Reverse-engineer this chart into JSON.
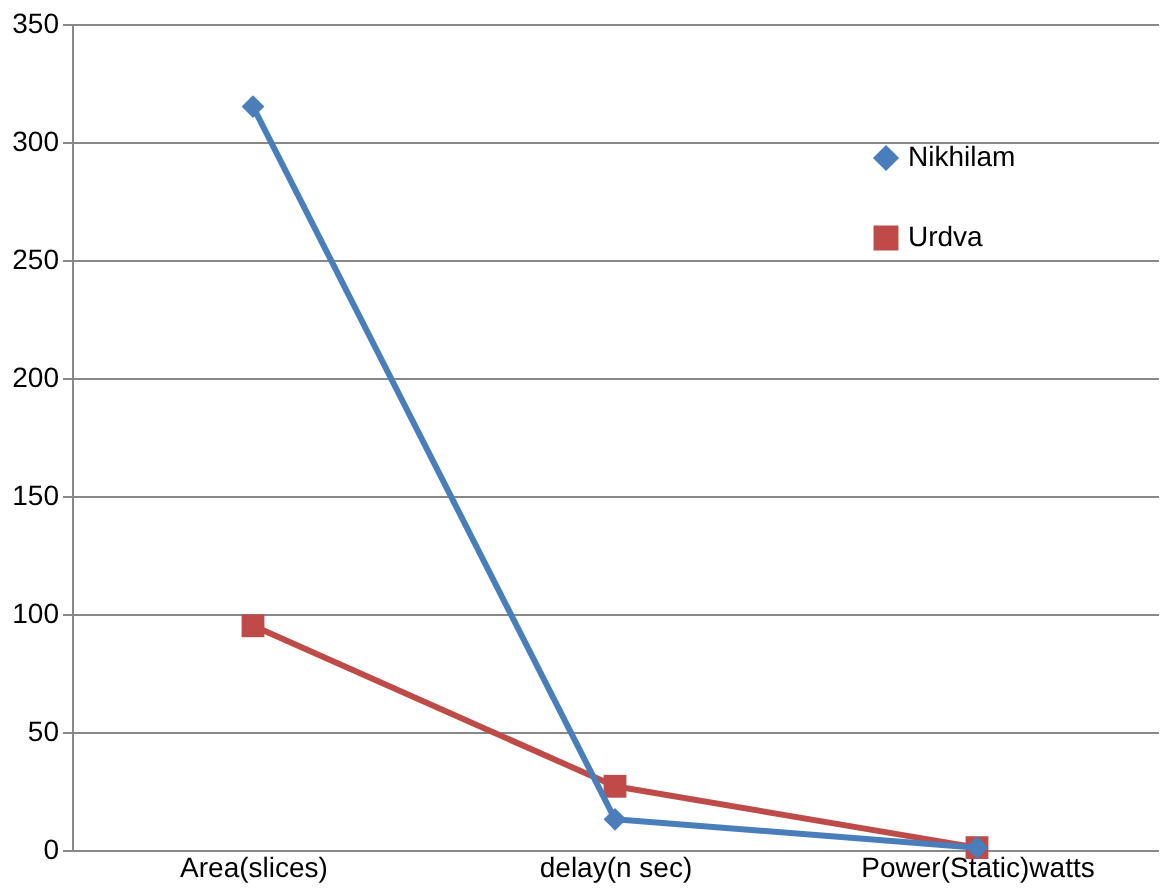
{
  "chart_data": {
    "type": "line",
    "categories": [
      "Area(slices)",
      "delay(n sec)",
      "Power(Static)watts"
    ],
    "series": [
      {
        "name": "Nikhilam",
        "color": "#4a7ebb",
        "marker": "diamond",
        "values": [
          315,
          13,
          1
        ]
      },
      {
        "name": "Urdva",
        "color": "#be4b48",
        "marker": "square",
        "values": [
          95,
          27,
          1
        ]
      }
    ],
    "ylim": [
      0,
      350
    ],
    "yticks": [
      0,
      50,
      100,
      150,
      200,
      250,
      300,
      350
    ],
    "grid": "y",
    "legend": "top right"
  }
}
